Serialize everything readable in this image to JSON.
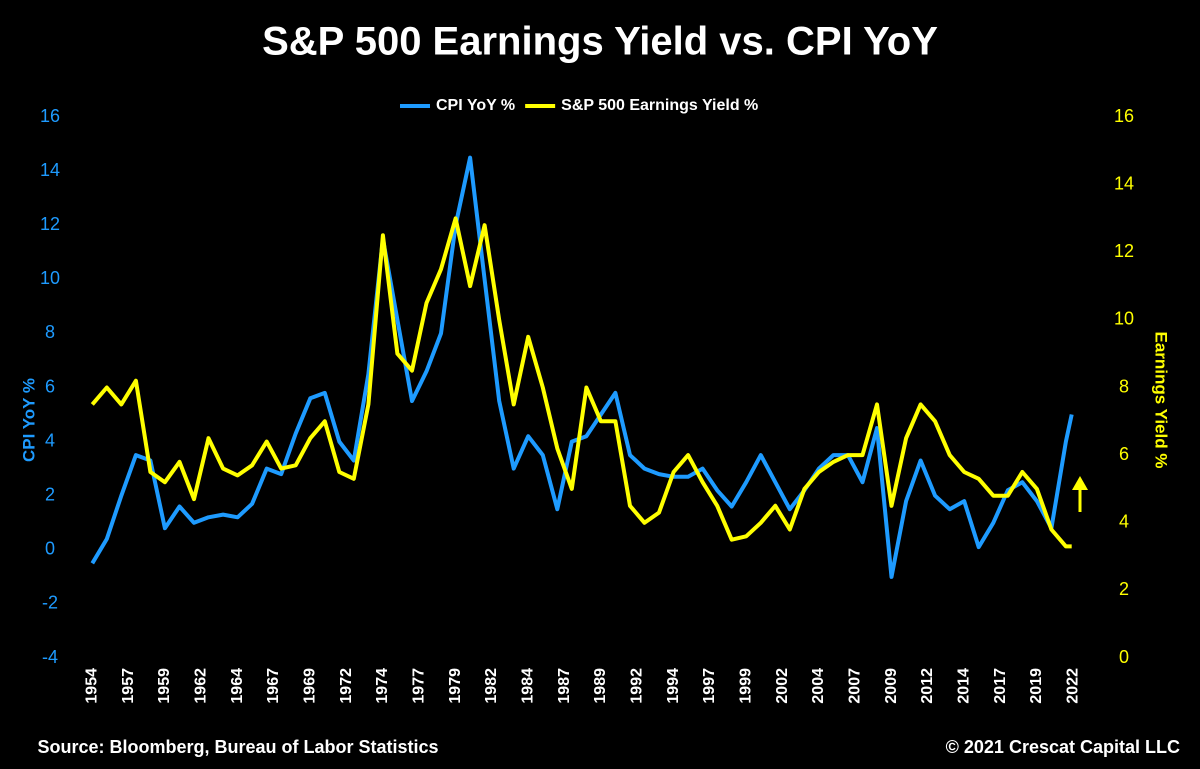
{
  "chart_data": {
    "type": "line",
    "title": "S&P 500 Earnings Yield vs. CPI YoY",
    "y_label": "CPI YoY %",
    "y2_label": "Earnings Yield %",
    "source": "Source: Bloomberg, Bureau of Labor Statistics",
    "copyright": "© 2021 Crescat Capital LLC",
    "legend": "top",
    "x": [
      1954,
      1955,
      1956,
      1957,
      1958,
      1959,
      1960,
      1961,
      1962,
      1963,
      1964,
      1965,
      1966,
      1967,
      1968,
      1969,
      1970,
      1971,
      1972,
      1973,
      1974,
      1975,
      1976,
      1977,
      1978,
      1979,
      1980,
      1981,
      1982,
      1983,
      1984,
      1985,
      1986,
      1987,
      1988,
      1989,
      1990,
      1991,
      1992,
      1993,
      1994,
      1995,
      1996,
      1997,
      1998,
      1999,
      2000,
      2001,
      2002,
      2003,
      2004,
      2005,
      2006,
      2007,
      2008,
      2009,
      2010,
      2011,
      2012,
      2013,
      2014,
      2015,
      2016,
      2017,
      2018,
      2019,
      2020,
      2021,
      2021.4
    ],
    "series": [
      {
        "name": "CPI YoY %",
        "color": "#1e9bff",
        "axis": "y",
        "values": [
          -0.5,
          0.4,
          2.0,
          3.5,
          3.3,
          0.8,
          1.6,
          1.0,
          1.2,
          1.3,
          1.2,
          1.7,
          3.0,
          2.8,
          4.3,
          5.6,
          5.8,
          4.0,
          3.3,
          6.5,
          11.5,
          8.5,
          5.5,
          6.6,
          8.0,
          12.0,
          14.5,
          10.0,
          5.5,
          3.0,
          4.2,
          3.5,
          1.5,
          4.0,
          4.2,
          5.0,
          5.8,
          3.5,
          3.0,
          2.8,
          2.7,
          2.7,
          3.0,
          2.2,
          1.6,
          2.5,
          3.5,
          2.5,
          1.5,
          2.2,
          3.0,
          3.5,
          3.5,
          2.5,
          4.5,
          -1.0,
          1.8,
          3.3,
          2.0,
          1.5,
          1.8,
          0.1,
          1.0,
          2.2,
          2.5,
          1.8,
          0.8,
          4.0,
          5.0
        ]
      },
      {
        "name": "S&P 500 Earnings Yield %",
        "color": "#ffff00",
        "axis": "y2",
        "values": [
          7.5,
          8.0,
          7.5,
          8.2,
          5.5,
          5.2,
          5.8,
          4.7,
          6.5,
          5.6,
          5.4,
          5.7,
          6.4,
          5.6,
          5.7,
          6.5,
          7.0,
          5.5,
          5.3,
          7.5,
          12.5,
          9.0,
          8.5,
          10.5,
          11.5,
          13.0,
          11.0,
          12.8,
          10.0,
          7.5,
          9.5,
          8.0,
          6.2,
          5.0,
          8.0,
          7.0,
          7.0,
          4.5,
          4.0,
          4.3,
          5.5,
          6.0,
          5.2,
          4.5,
          3.5,
          3.6,
          4.0,
          4.5,
          3.8,
          5.0,
          5.5,
          5.8,
          6.0,
          6.0,
          7.5,
          4.5,
          6.5,
          7.5,
          7.0,
          6.0,
          5.5,
          5.3,
          4.8,
          4.8,
          5.5,
          5.0,
          3.8,
          3.3,
          3.3
        ]
      }
    ],
    "xlim": [
      1953.5,
      2023
    ],
    "xticks": [
      1954,
      {
        "value": 1956.5,
        "label": "1957"
      },
      1959,
      {
        "value": 1961.5,
        "label": "1962"
      },
      1964,
      {
        "value": 1966.5,
        "label": "1967"
      },
      1969,
      {
        "value": 1971.5,
        "label": "1972"
      },
      1974,
      {
        "value": 1976.5,
        "label": "1977"
      },
      1979,
      {
        "value": 1981.5,
        "label": "1982"
      },
      1984,
      {
        "value": 1986.5,
        "label": "1987"
      },
      1989,
      {
        "value": 1991.5,
        "label": "1992"
      },
      1994,
      {
        "value": 1996.5,
        "label": "1997"
      },
      1999,
      {
        "value": 2001.5,
        "label": "2002"
      },
      2004,
      {
        "value": 2006.5,
        "label": "2007"
      },
      2009,
      {
        "value": 2011.5,
        "label": "2012"
      },
      2014,
      {
        "value": 2016.5,
        "label": "2017"
      },
      2019,
      {
        "value": 2021.5,
        "label": "2022"
      }
    ],
    "ylim": [
      -4,
      16
    ],
    "yticks": [
      -4,
      -2,
      0,
      2,
      4,
      6,
      8,
      10,
      12,
      14,
      16
    ],
    "y2lim": [
      0,
      16
    ],
    "y2ticks": [
      0,
      2,
      4,
      6,
      8,
      10,
      12,
      14,
      16
    ]
  }
}
